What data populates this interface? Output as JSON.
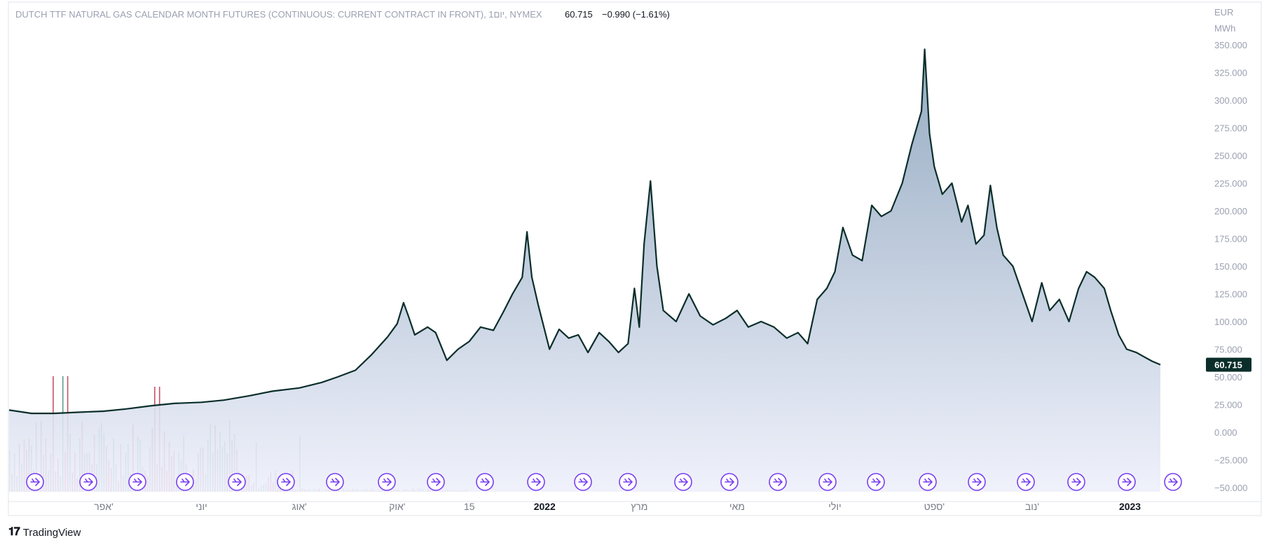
{
  "header": {
    "symbol": "DUTCH TTF NATURAL GAS CALENDAR MONTH FUTURES (CONTINUOUS: CURRENT CONTRACT IN FRONT), 1יום, NYMEX",
    "last": "60.715",
    "change": "−0.990 (−1.61%)"
  },
  "currency": "EUR",
  "unit": "MWh",
  "price_badge": "60.715",
  "brand": "TradingView",
  "colors": {
    "line": "#0b2e2a",
    "area_top": "#8aa2bb",
    "area_bottom": "#eef0fb",
    "vol_up": "#5f9e8c",
    "vol_down": "#c8526a",
    "marker": "#7a3ff2",
    "badge_bg": "#0b2e2a"
  },
  "markers": {
    "count": 24,
    "icon": "dividend-arrow-icon"
  },
  "chart_data": {
    "type": "area",
    "title": "",
    "xlabel": "",
    "ylabel": "",
    "x_range": [
      "2021-02-01",
      "2023-01-20"
    ],
    "ylim": [
      -50,
      350
    ],
    "y_ticks": [
      "350.000",
      "325.000",
      "300.000",
      "275.000",
      "250.000",
      "225.000",
      "200.000",
      "175.000",
      "150.000",
      "125.000",
      "100.000",
      "75.000",
      "50.000",
      "25.000",
      "0.000",
      "−25.000",
      "−50.000"
    ],
    "x_ticks": [
      {
        "label": "אפר'",
        "date": "2021-04-01",
        "bold": false
      },
      {
        "label": "יוני",
        "date": "2021-06-01",
        "bold": false
      },
      {
        "label": "אוג'",
        "date": "2021-08-01",
        "bold": false
      },
      {
        "label": "אוק'",
        "date": "2021-10-01",
        "bold": false
      },
      {
        "label": "15",
        "date": "2021-11-15",
        "bold": false
      },
      {
        "label": "2022",
        "date": "2022-01-01",
        "bold": true
      },
      {
        "label": "מרץ",
        "date": "2022-03-01",
        "bold": false
      },
      {
        "label": "מאי",
        "date": "2022-05-01",
        "bold": false
      },
      {
        "label": "יולי",
        "date": "2022-07-01",
        "bold": false
      },
      {
        "label": "ספט'",
        "date": "2022-09-01",
        "bold": false
      },
      {
        "label": "נוב'",
        "date": "2022-11-01",
        "bold": false
      },
      {
        "label": "2023",
        "date": "2023-01-01",
        "bold": true
      }
    ],
    "series": [
      {
        "points": [
          [
            "2021-02-01",
            20
          ],
          [
            "2021-02-15",
            17
          ],
          [
            "2021-03-01",
            17
          ],
          [
            "2021-03-15",
            18
          ],
          [
            "2021-04-01",
            19
          ],
          [
            "2021-04-15",
            21
          ],
          [
            "2021-05-01",
            24
          ],
          [
            "2021-05-15",
            26
          ],
          [
            "2021-06-01",
            27
          ],
          [
            "2021-06-15",
            29
          ],
          [
            "2021-07-01",
            33
          ],
          [
            "2021-07-15",
            37
          ],
          [
            "2021-08-01",
            40
          ],
          [
            "2021-08-15",
            45
          ],
          [
            "2021-08-25",
            50
          ],
          [
            "2021-09-05",
            56
          ],
          [
            "2021-09-15",
            70
          ],
          [
            "2021-09-25",
            86
          ],
          [
            "2021-10-01",
            98
          ],
          [
            "2021-10-05",
            117
          ],
          [
            "2021-10-08",
            105
          ],
          [
            "2021-10-12",
            88
          ],
          [
            "2021-10-20",
            95
          ],
          [
            "2021-10-25",
            90
          ],
          [
            "2021-11-01",
            65
          ],
          [
            "2021-11-08",
            75
          ],
          [
            "2021-11-15",
            82
          ],
          [
            "2021-11-22",
            95
          ],
          [
            "2021-11-30",
            92
          ],
          [
            "2021-12-06",
            108
          ],
          [
            "2021-12-12",
            125
          ],
          [
            "2021-12-18",
            140
          ],
          [
            "2021-12-21",
            181
          ],
          [
            "2021-12-24",
            140
          ],
          [
            "2021-12-28",
            115
          ],
          [
            "2022-01-04",
            75
          ],
          [
            "2022-01-10",
            93
          ],
          [
            "2022-01-16",
            85
          ],
          [
            "2022-01-22",
            88
          ],
          [
            "2022-01-28",
            72
          ],
          [
            "2022-02-04",
            90
          ],
          [
            "2022-02-10",
            82
          ],
          [
            "2022-02-16",
            72
          ],
          [
            "2022-02-22",
            80
          ],
          [
            "2022-02-26",
            130
          ],
          [
            "2022-03-01",
            95
          ],
          [
            "2022-03-04",
            170
          ],
          [
            "2022-03-08",
            227
          ],
          [
            "2022-03-12",
            150
          ],
          [
            "2022-03-16",
            110
          ],
          [
            "2022-03-24",
            100
          ],
          [
            "2022-04-01",
            125
          ],
          [
            "2022-04-08",
            105
          ],
          [
            "2022-04-16",
            97
          ],
          [
            "2022-04-24",
            103
          ],
          [
            "2022-05-01",
            110
          ],
          [
            "2022-05-08",
            95
          ],
          [
            "2022-05-16",
            100
          ],
          [
            "2022-05-24",
            95
          ],
          [
            "2022-06-01",
            85
          ],
          [
            "2022-06-08",
            90
          ],
          [
            "2022-06-14",
            80
          ],
          [
            "2022-06-20",
            120
          ],
          [
            "2022-06-26",
            130
          ],
          [
            "2022-07-01",
            145
          ],
          [
            "2022-07-06",
            185
          ],
          [
            "2022-07-12",
            160
          ],
          [
            "2022-07-18",
            155
          ],
          [
            "2022-07-24",
            205
          ],
          [
            "2022-07-30",
            195
          ],
          [
            "2022-08-05",
            200
          ],
          [
            "2022-08-12",
            225
          ],
          [
            "2022-08-18",
            260
          ],
          [
            "2022-08-24",
            290
          ],
          [
            "2022-08-26",
            346
          ],
          [
            "2022-08-29",
            270
          ],
          [
            "2022-09-01",
            240
          ],
          [
            "2022-09-06",
            215
          ],
          [
            "2022-09-12",
            225
          ],
          [
            "2022-09-18",
            190
          ],
          [
            "2022-09-22",
            205
          ],
          [
            "2022-09-27",
            170
          ],
          [
            "2022-10-02",
            178
          ],
          [
            "2022-10-06",
            223
          ],
          [
            "2022-10-10",
            185
          ],
          [
            "2022-10-14",
            160
          ],
          [
            "2022-10-20",
            150
          ],
          [
            "2022-10-26",
            125
          ],
          [
            "2022-11-01",
            100
          ],
          [
            "2022-11-07",
            135
          ],
          [
            "2022-11-12",
            110
          ],
          [
            "2022-11-18",
            120
          ],
          [
            "2022-11-24",
            100
          ],
          [
            "2022-11-30",
            130
          ],
          [
            "2022-12-05",
            145
          ],
          [
            "2022-12-10",
            140
          ],
          [
            "2022-12-16",
            130
          ],
          [
            "2022-12-20",
            110
          ],
          [
            "2022-12-25",
            88
          ],
          [
            "2022-12-30",
            75
          ],
          [
            "2023-01-05",
            72
          ],
          [
            "2023-01-10",
            68
          ],
          [
            "2023-01-15",
            64
          ],
          [
            "2023-01-20",
            61
          ]
        ]
      }
    ],
    "volume_count": 190
  }
}
